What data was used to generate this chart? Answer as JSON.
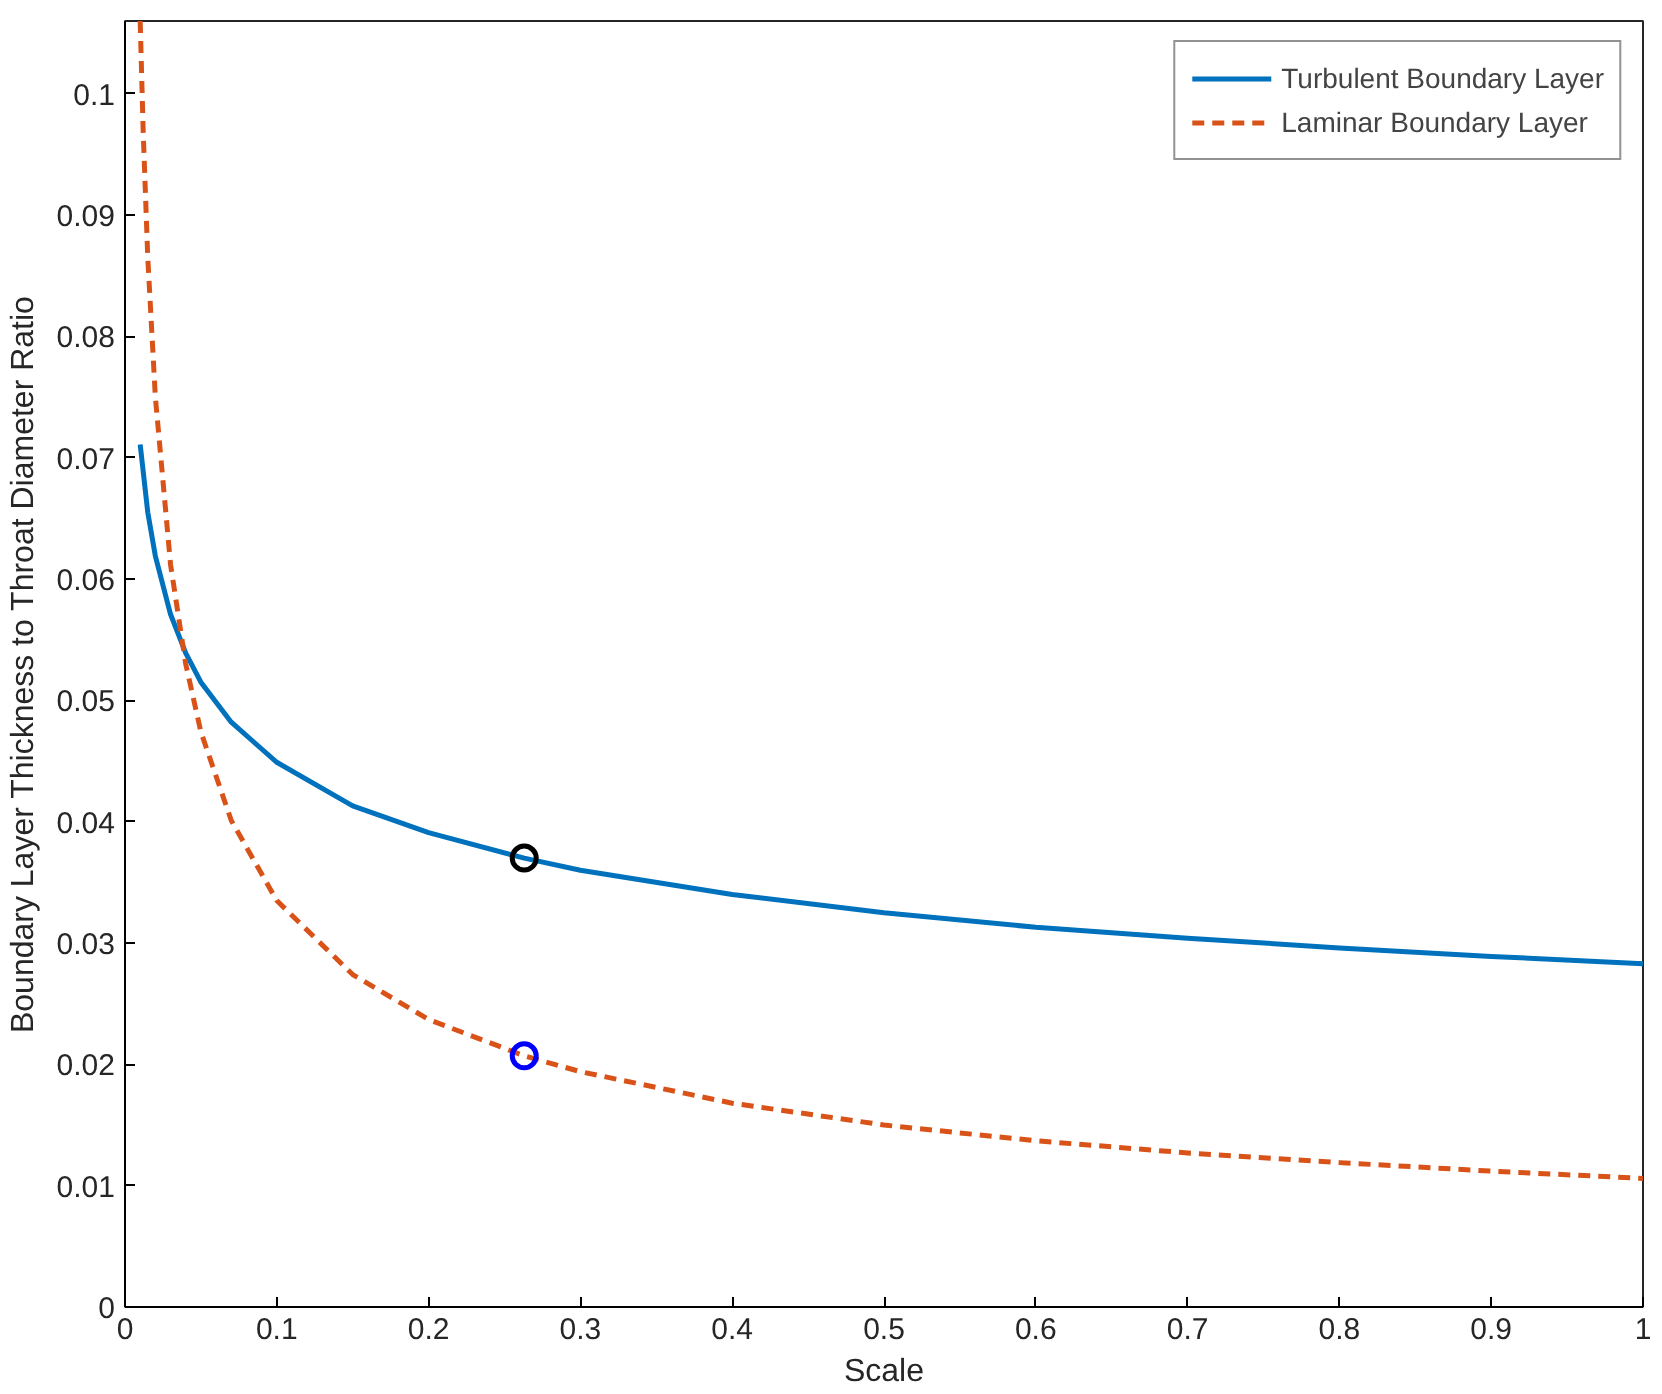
{
  "chart_data": {
    "type": "line",
    "xlabel": "Scale",
    "ylabel": "Boundary Layer Thickness to Throat Diameter Ratio",
    "xlim": [
      0,
      1
    ],
    "ylim": [
      0,
      0.106
    ],
    "xticks": [
      0,
      0.1,
      0.2,
      0.3,
      0.4,
      0.5,
      0.6,
      0.7,
      0.8,
      0.9,
      1
    ],
    "yticks": [
      0,
      0.01,
      0.02,
      0.03,
      0.04,
      0.05,
      0.06,
      0.07,
      0.08,
      0.09,
      0.1
    ],
    "grid": false,
    "legend": "top right",
    "series": [
      {
        "name": "Turbulent Boundary Layer",
        "color": "#0072bd",
        "line_style": "solid",
        "marker": "none",
        "x": [
          0.01,
          0.015,
          0.02,
          0.03,
          0.04,
          0.05,
          0.07,
          0.1,
          0.15,
          0.2,
          0.263,
          0.3,
          0.4,
          0.5,
          0.6,
          0.7,
          0.8,
          0.9,
          1.0
        ],
        "values": [
          0.0711,
          0.0655,
          0.0619,
          0.0571,
          0.0539,
          0.0515,
          0.0482,
          0.0449,
          0.0413,
          0.0391,
          0.037,
          0.036,
          0.034,
          0.0325,
          0.0313,
          0.0304,
          0.0296,
          0.0289,
          0.0283
        ]
      },
      {
        "name": "Laminar Boundary Layer",
        "color": "#d95319",
        "line_style": "dashed",
        "marker": "none",
        "x": [
          0.01,
          0.012,
          0.015,
          0.02,
          0.03,
          0.04,
          0.05,
          0.07,
          0.1,
          0.15,
          0.2,
          0.263,
          0.3,
          0.4,
          0.5,
          0.6,
          0.7,
          0.8,
          0.9,
          1.0
        ],
        "values": [
          0.106,
          0.0968,
          0.0865,
          0.075,
          0.0612,
          0.053,
          0.0474,
          0.0401,
          0.0335,
          0.0274,
          0.0237,
          0.0207,
          0.0194,
          0.0168,
          0.015,
          0.0137,
          0.0127,
          0.0119,
          0.0112,
          0.0106
        ]
      },
      {
        "type": "scatter",
        "color": "#000000",
        "marker": "circle",
        "x": [
          0.263
        ],
        "values": [
          0.037
        ]
      },
      {
        "type": "scatter",
        "color": "#0000ff",
        "marker": "circle",
        "x": [
          0.263
        ],
        "values": [
          0.0207
        ]
      }
    ]
  }
}
